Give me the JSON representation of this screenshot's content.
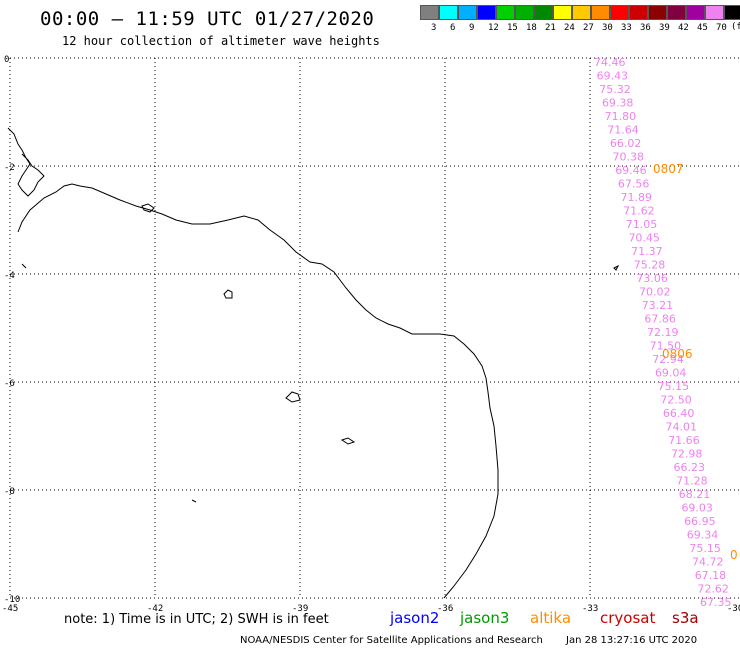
{
  "title": "00:00 – 11:59 UTC 01/27/2020",
  "subtitle": "12 hour collection of altimeter wave heights",
  "legend": {
    "unit": "(ft)",
    "items": [
      {
        "label": "3",
        "color": "#808080"
      },
      {
        "label": "6",
        "color": "#00ffff"
      },
      {
        "label": "9",
        "color": "#00b0ff"
      },
      {
        "label": "12",
        "color": "#0000ff"
      },
      {
        "label": "15",
        "color": "#00d000"
      },
      {
        "label": "18",
        "color": "#00b000"
      },
      {
        "label": "21",
        "color": "#008800"
      },
      {
        "label": "24",
        "color": "#ffff00"
      },
      {
        "label": "27",
        "color": "#ffc800"
      },
      {
        "label": "30",
        "color": "#ff8c00"
      },
      {
        "label": "33",
        "color": "#ff0000"
      },
      {
        "label": "36",
        "color": "#cc0000"
      },
      {
        "label": "39",
        "color": "#8b0000"
      },
      {
        "label": "42",
        "color": "#800040"
      },
      {
        "label": "45",
        "color": "#a000a0"
      },
      {
        "label": "70",
        "color": "#ee82ee"
      },
      {
        "label": "",
        "color": "#000000"
      }
    ]
  },
  "map": {
    "lon_ticks": [
      "-45",
      "-42",
      "-39",
      "-36",
      "-33",
      "-30"
    ],
    "lat_ticks": [
      "0",
      "-2",
      "-4",
      "-6",
      "-8",
      "-10"
    ]
  },
  "track": {
    "values": [
      "74.46",
      "69.43",
      "75.32",
      "69.38",
      "71.80",
      "71.64",
      "66.02",
      "70.38",
      "69.46",
      "67.56",
      "71.89",
      "71.62",
      "71.05",
      "70.45",
      "71.37",
      "75.28",
      "73.06",
      "70.02",
      "73.21",
      "67.86",
      "72.19",
      "71.50",
      "72.94",
      "69.04",
      "75.15",
      "72.50",
      "66.40",
      "74.01",
      "71.66",
      "72.98",
      "66.23",
      "71.28",
      "68.21",
      "69.03",
      "66.95",
      "69.34",
      "75.15",
      "74.72",
      "67.18",
      "72.62",
      "67.35"
    ],
    "time_markers": [
      "0807",
      "0806",
      "0"
    ]
  },
  "note": "note: 1) Time is in UTC; 2) SWH is in feet",
  "satellites": [
    {
      "name": "jason2",
      "color": "#0000ff"
    },
    {
      "name": "jason3",
      "color": "#009900"
    },
    {
      "name": "altika",
      "color": "#ff8c00"
    },
    {
      "name": "cryosat",
      "color": "#cc0000"
    },
    {
      "name": "s3a",
      "color": "#a00000"
    }
  ],
  "footer": {
    "credit": "NOAA/NESDIS Center for Satellite Applications and Research",
    "timestamp": "Jan 28 13:27:16 UTC 2020"
  }
}
